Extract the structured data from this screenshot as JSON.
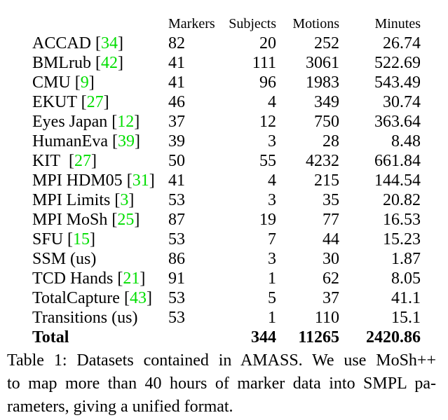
{
  "colors": {
    "cite_green": "#00DE00",
    "text": "#000000",
    "background": "#ffffff"
  },
  "table": {
    "headers": [
      "Markers",
      "Subjects",
      "Motions",
      "Minutes"
    ],
    "rows": [
      {
        "name": "ACCAD",
        "cite": "34",
        "markers": "82",
        "subjects": "20",
        "motions": "252",
        "minutes": "26.74"
      },
      {
        "name": "BMLrub",
        "cite": "42",
        "markers": "41",
        "subjects": "111",
        "motions": "3061",
        "minutes": "522.69"
      },
      {
        "name": "CMU",
        "cite": "9",
        "markers": "41",
        "subjects": "96",
        "motions": "1983",
        "minutes": "543.49"
      },
      {
        "name": "EKUT",
        "cite": "27",
        "markers": "46",
        "subjects": "4",
        "motions": "349",
        "minutes": "30.74"
      },
      {
        "name": "Eyes Japan",
        "cite": "12",
        "markers": "37",
        "subjects": "12",
        "motions": "750",
        "minutes": "363.64"
      },
      {
        "name": "HumanEva",
        "cite": "39",
        "markers": "39",
        "subjects": "3",
        "motions": "28",
        "minutes": "8.48"
      },
      {
        "name": "KIT",
        "cite": "27",
        "extra_space": true,
        "markers": "50",
        "subjects": "55",
        "motions": "4232",
        "minutes": "661.84"
      },
      {
        "name": "MPI HDM05",
        "cite": "31",
        "markers": "41",
        "subjects": "4",
        "motions": "215",
        "minutes": "144.54"
      },
      {
        "name": "MPI Limits",
        "cite": "3",
        "markers": "53",
        "subjects": "3",
        "motions": "35",
        "minutes": "20.82"
      },
      {
        "name": "MPI MoSh",
        "cite": "25",
        "markers": "87",
        "subjects": "19",
        "motions": "77",
        "minutes": "16.53"
      },
      {
        "name": "SFU",
        "cite": "15",
        "markers": "53",
        "subjects": "7",
        "motions": "44",
        "minutes": "15.23"
      },
      {
        "name": "SSM",
        "suffix": "(us)",
        "markers": "86",
        "subjects": "3",
        "motions": "30",
        "minutes": "1.87"
      },
      {
        "name": "TCD Hands",
        "cite": "21",
        "markers": "91",
        "subjects": "1",
        "motions": "62",
        "minutes": "8.05"
      },
      {
        "name": "TotalCapture",
        "cite": "43",
        "markers": "53",
        "subjects": "5",
        "motions": "37",
        "minutes": "41.1"
      },
      {
        "name": "Transitions",
        "suffix": "(us)",
        "markers": "53",
        "subjects": "1",
        "motions": "110",
        "minutes": "15.1"
      }
    ],
    "total": {
      "label": "Total",
      "markers": "",
      "subjects": "344",
      "motions": "11265",
      "minutes": "2420.86"
    }
  },
  "caption": {
    "lines": [
      "Table 1: Datasets contained in AMASS. We use MoSh++",
      "to map more than 40 hours of marker data into SMPL pa-",
      "rameters, giving a unified format."
    ]
  }
}
